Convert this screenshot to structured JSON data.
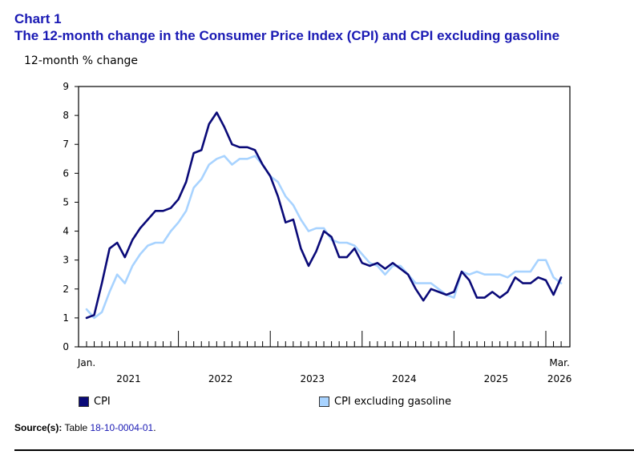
{
  "header": {
    "chart_number": "Chart 1",
    "title": "The 12-month change in the Consumer Price Index (CPI) and CPI excluding gasoline"
  },
  "source": {
    "label": "Source(s):",
    "text": "Table",
    "link_text": "18-10-0004-01",
    "suffix": "."
  },
  "colors": {
    "cpi": "#0a0a78",
    "cpi_ex_gas": "#a8d3ff",
    "title": "#1a1ab4"
  },
  "chart_data": {
    "type": "line",
    "title": "The 12-month change in the Consumer Price Index (CPI) and CPI excluding gasoline",
    "ylabel": "12-month % change",
    "xlabel": "",
    "ylim": [
      0,
      9
    ],
    "yticks": [
      "0",
      "1",
      "2",
      "3",
      "4",
      "5",
      "6",
      "7",
      "8",
      "9"
    ],
    "x_start_label": "Jan.",
    "x_end_label": "Mar.",
    "year_labels": [
      "2021",
      "2022",
      "2023",
      "2024",
      "2025",
      "2026"
    ],
    "x": [
      "2021-01",
      "2021-02",
      "2021-03",
      "2021-04",
      "2021-05",
      "2021-06",
      "2021-07",
      "2021-08",
      "2021-09",
      "2021-10",
      "2021-11",
      "2021-12",
      "2022-01",
      "2022-02",
      "2022-03",
      "2022-04",
      "2022-05",
      "2022-06",
      "2022-07",
      "2022-08",
      "2022-09",
      "2022-10",
      "2022-11",
      "2022-12",
      "2023-01",
      "2023-02",
      "2023-03",
      "2023-04",
      "2023-05",
      "2023-06",
      "2023-07",
      "2023-08",
      "2023-09",
      "2023-10",
      "2023-11",
      "2023-12",
      "2024-01",
      "2024-02",
      "2024-03",
      "2024-04",
      "2024-05",
      "2024-06",
      "2024-07",
      "2024-08",
      "2024-09",
      "2024-10",
      "2024-11",
      "2024-12",
      "2025-01",
      "2025-02",
      "2025-03",
      "2025-04",
      "2025-05",
      "2025-06",
      "2025-07",
      "2025-08",
      "2025-09",
      "2025-10",
      "2025-11",
      "2025-12",
      "2026-01",
      "2026-02",
      "2026-03"
    ],
    "legend_position": "bottom",
    "grid": false,
    "series": [
      {
        "name": "CPI",
        "values": [
          1.0,
          1.1,
          2.2,
          3.4,
          3.6,
          3.1,
          3.7,
          4.1,
          4.4,
          4.7,
          4.7,
          4.8,
          5.1,
          5.7,
          6.7,
          6.8,
          7.7,
          8.1,
          7.6,
          7.0,
          6.9,
          6.9,
          6.8,
          6.3,
          5.9,
          5.2,
          4.3,
          4.4,
          3.4,
          2.8,
          3.3,
          4.0,
          3.8,
          3.1,
          3.1,
          3.4,
          2.9,
          2.8,
          2.9,
          2.7,
          2.9,
          2.7,
          2.5,
          2.0,
          1.6,
          2.0,
          1.9,
          1.8,
          1.9,
          2.6,
          2.3,
          1.7,
          1.7,
          1.9,
          1.7,
          1.9,
          2.4,
          2.2,
          2.2,
          2.4,
          2.3,
          1.8,
          2.4
        ]
      },
      {
        "name": "CPI excluding gasoline",
        "values": [
          1.3,
          1.0,
          1.2,
          1.9,
          2.5,
          2.2,
          2.8,
          3.2,
          3.5,
          3.6,
          3.6,
          4.0,
          4.3,
          4.7,
          5.5,
          5.8,
          6.3,
          6.5,
          6.6,
          6.3,
          6.5,
          6.5,
          6.6,
          6.3,
          5.9,
          5.7,
          5.2,
          4.9,
          4.4,
          4.0,
          4.1,
          4.1,
          3.7,
          3.6,
          3.6,
          3.5,
          3.2,
          2.9,
          2.8,
          2.5,
          2.8,
          2.8,
          2.5,
          2.2,
          2.2,
          2.2,
          2.0,
          1.8,
          1.7,
          2.6,
          2.5,
          2.6,
          2.5,
          2.5,
          2.5,
          2.4,
          2.6,
          2.6,
          2.6,
          3.0,
          3.0,
          2.4,
          2.2
        ]
      }
    ]
  }
}
